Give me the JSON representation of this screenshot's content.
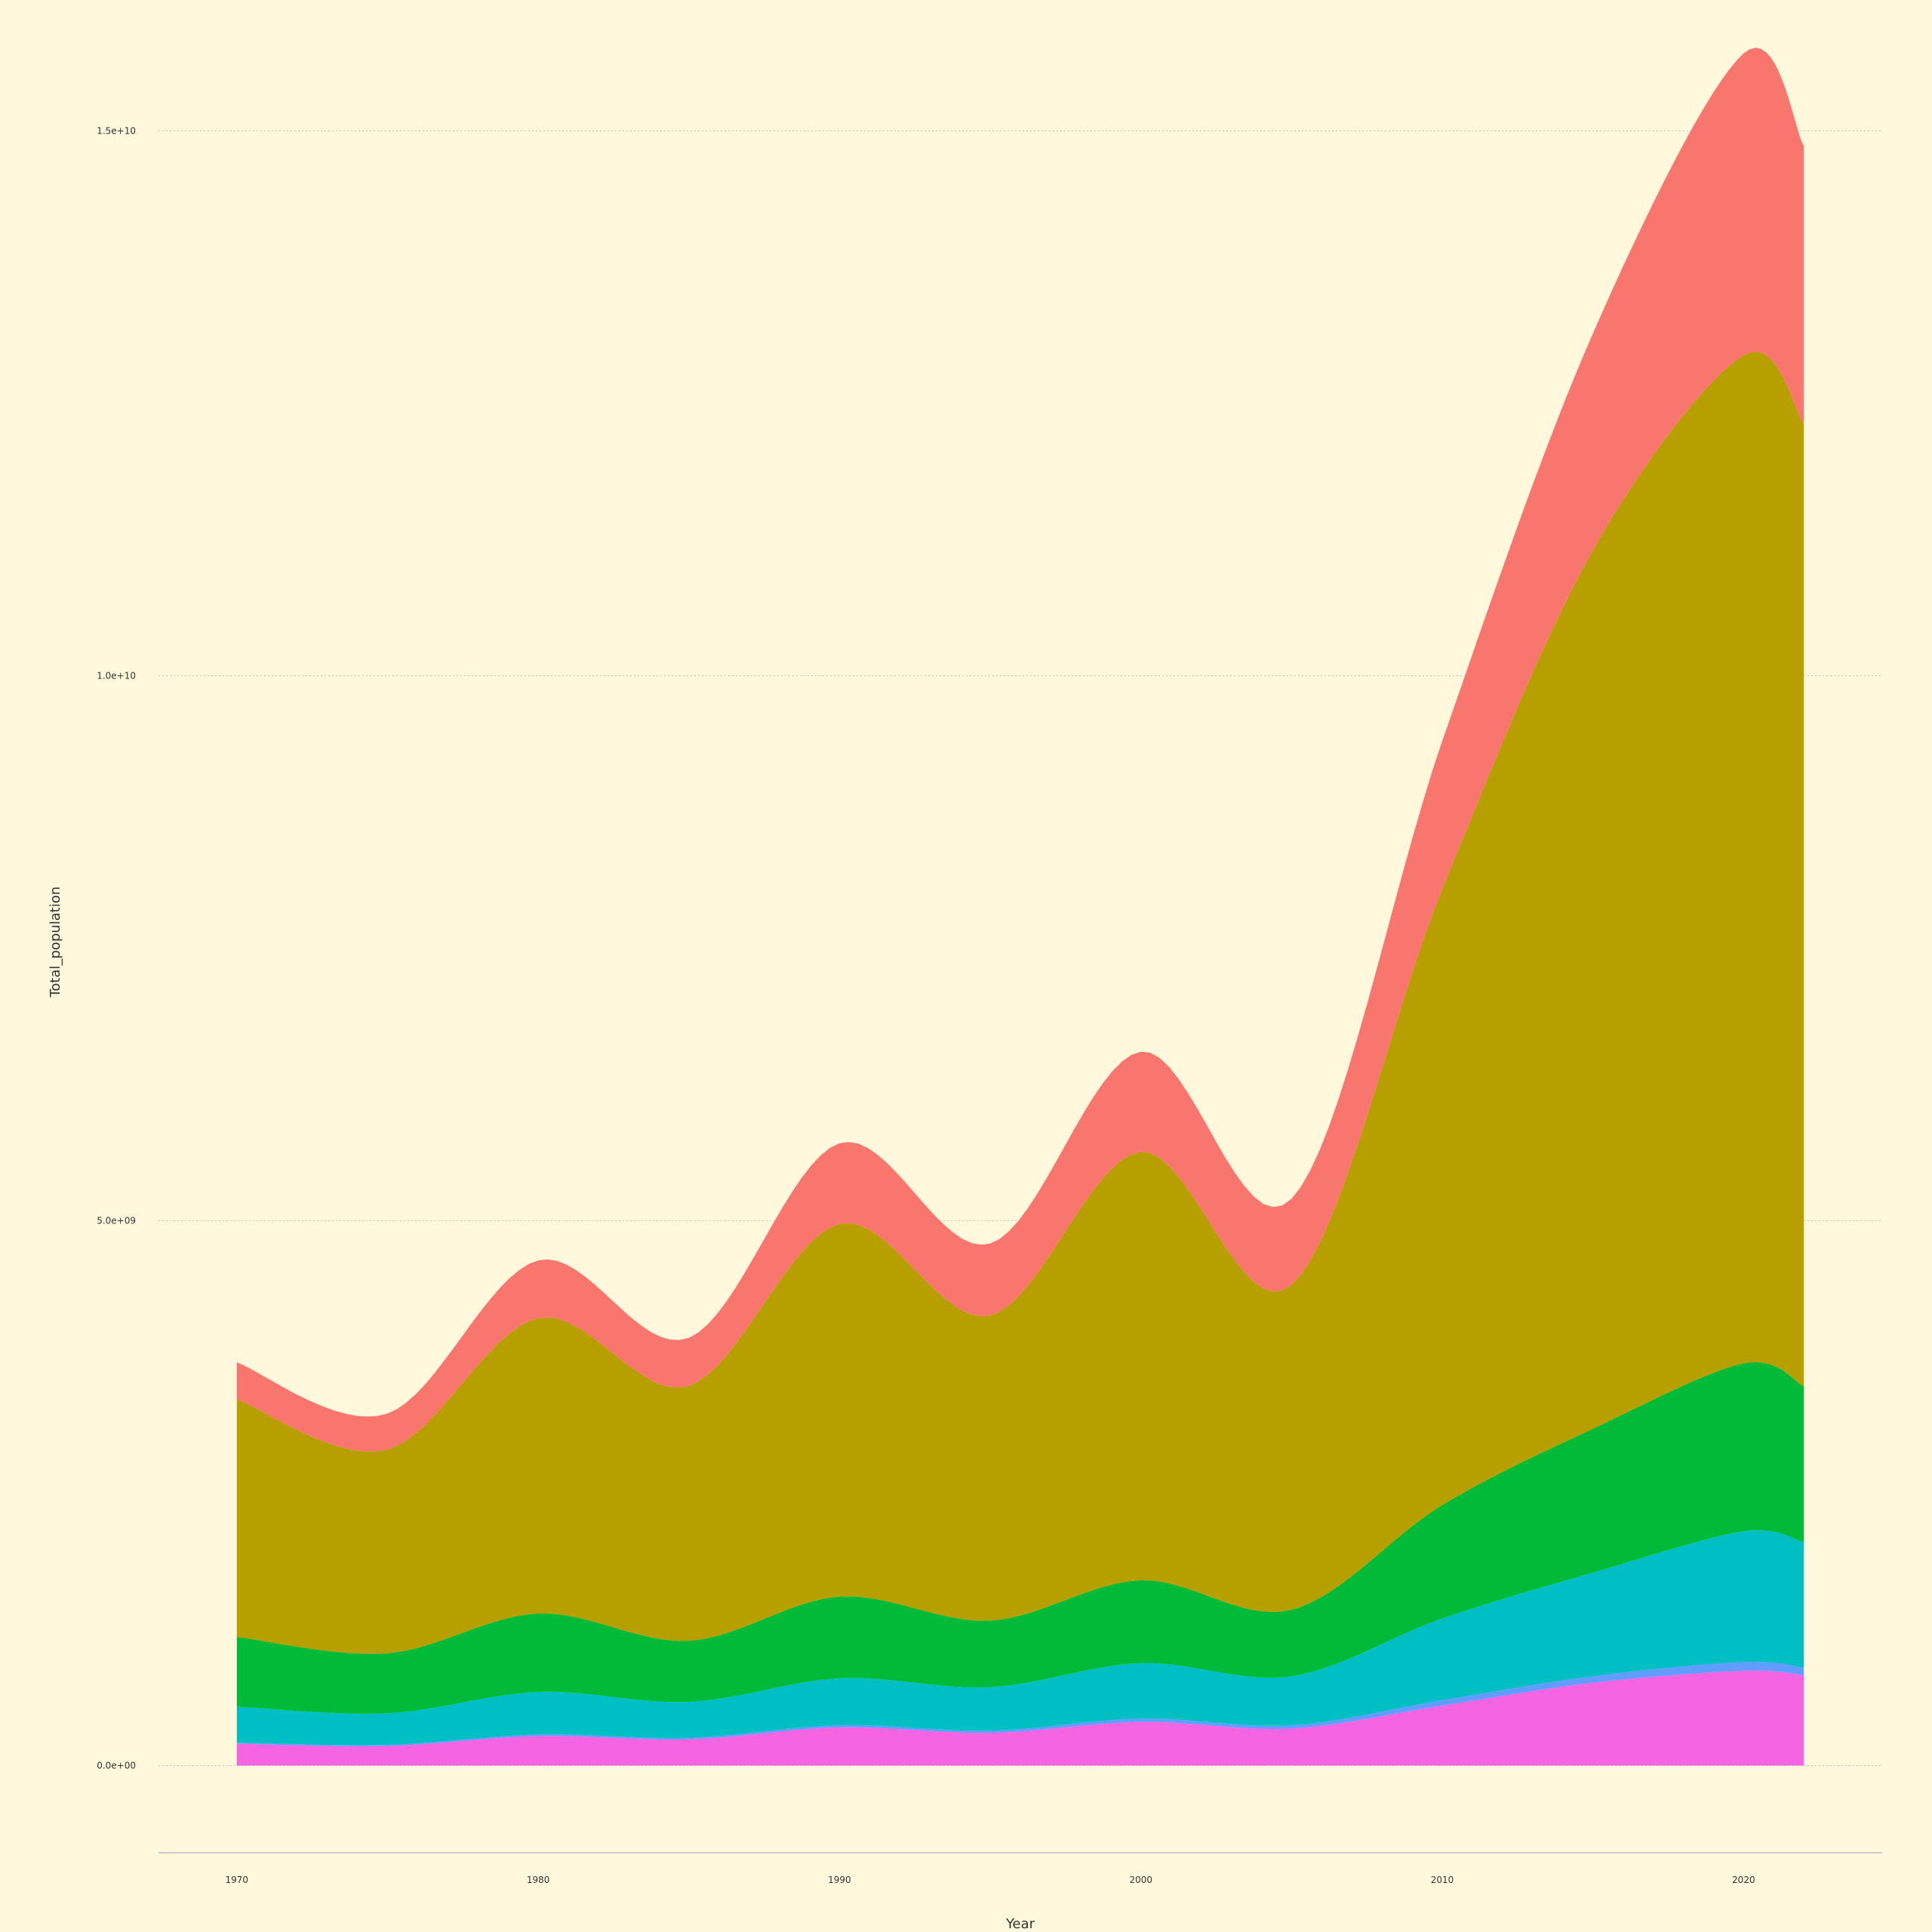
{
  "chart_data": {
    "type": "area",
    "stacked": true,
    "smooth": true,
    "xlabel": "Year",
    "ylabel": "Total_population",
    "xlim": [
      1967.4,
      2024.6
    ],
    "ylim": [
      -800000000,
      16200000000
    ],
    "x_ticks": [
      {
        "value": 1970,
        "label": "1970"
      },
      {
        "value": 1980,
        "label": "1980"
      },
      {
        "value": 1990,
        "label": "1990"
      },
      {
        "value": 2000,
        "label": "2000"
      },
      {
        "value": 2010,
        "label": "2010"
      },
      {
        "value": 2020,
        "label": "2020"
      }
    ],
    "y_ticks": [
      {
        "value": 0,
        "label": "0.0e+00"
      },
      {
        "value": 5000000000,
        "label": "5.0e+09"
      },
      {
        "value": 10000000000,
        "label": "1.0e+10"
      },
      {
        "value": 15000000000,
        "label": "1.5e+10"
      }
    ],
    "grid": true,
    "legend": "none",
    "x": [
      1970,
      1975,
      1980,
      1985,
      1990,
      1995,
      2000,
      2005,
      2010,
      2015,
      2020,
      2022
    ],
    "series": [
      {
        "color": "#f564e3",
        "values": [
          200000000,
          180000000,
          270000000,
          240000000,
          350000000,
          300000000,
          400000000,
          340000000,
          550000000,
          760000000,
          870000000,
          830000000
        ]
      },
      {
        "color": "#619cff",
        "values": [
          10000000,
          10000000,
          15000000,
          15000000,
          20000000,
          20000000,
          30000000,
          30000000,
          50000000,
          60000000,
          80000000,
          70000000
        ]
      },
      {
        "color": "#00bfc4",
        "values": [
          330000000,
          290000000,
          390000000,
          330000000,
          430000000,
          400000000,
          510000000,
          450000000,
          750000000,
          950000000,
          1200000000,
          1150000000
        ]
      },
      {
        "color": "#00ba38",
        "values": [
          640000000,
          550000000,
          720000000,
          560000000,
          750000000,
          610000000,
          760000000,
          610000000,
          1040000000,
          1320000000,
          1540000000,
          1430000000
        ]
      },
      {
        "color": "#b79f00",
        "values": [
          2180000000,
          1870000000,
          2710000000,
          2340000000,
          3420000000,
          2800000000,
          3930000000,
          2980000000,
          5650000000,
          8060000000,
          9250000000,
          8830000000
        ]
      },
      {
        "color": "#f8766d",
        "values": [
          340000000,
          330000000,
          530000000,
          440000000,
          740000000,
          660000000,
          920000000,
          790000000,
          1360000000,
          1990000000,
          2770000000,
          2550000000
        ]
      }
    ]
  }
}
